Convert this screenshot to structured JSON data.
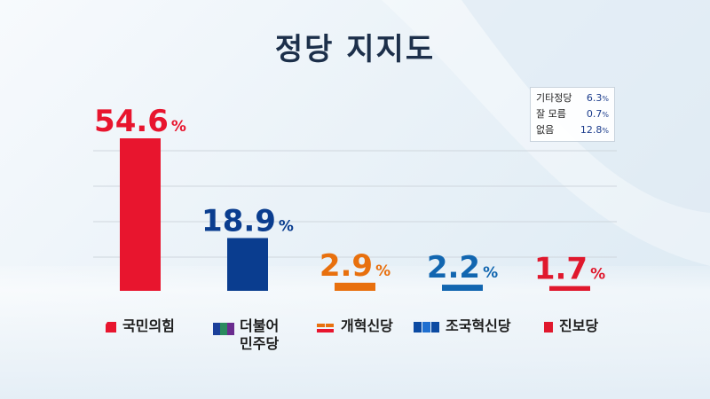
{
  "title": "정당 지지도",
  "chart_data": {
    "type": "bar",
    "title": "정당 지지도",
    "categories": [
      "국민의힘",
      "더불어\n민주당",
      "개혁신당",
      "조국혁신당",
      "진보당"
    ],
    "values": [
      54.6,
      18.9,
      2.9,
      2.2,
      1.7
    ],
    "unit": "%",
    "colors": [
      "#e8152e",
      "#0a3d8f",
      "#e8700e",
      "#1266b0",
      "#e0182d"
    ],
    "label_colors": [
      "#e8152e",
      "#0a3d8f",
      "#e8700e",
      "#1266b0",
      "#e0182d"
    ],
    "grid": true,
    "ylim": [
      0,
      60
    ]
  },
  "others": [
    {
      "label": "기타정당",
      "value": "6.3",
      "unit": "%"
    },
    {
      "label": "잘 모름",
      "value": "0.7",
      "unit": "%"
    },
    {
      "label": "없음",
      "value": "12.8",
      "unit": "%"
    }
  ],
  "party_logos": [
    "ppp-logo-icon",
    "democratic-logo-icon",
    "reform-logo-icon",
    "rebuilding-logo-icon",
    "progressive-logo-icon"
  ]
}
